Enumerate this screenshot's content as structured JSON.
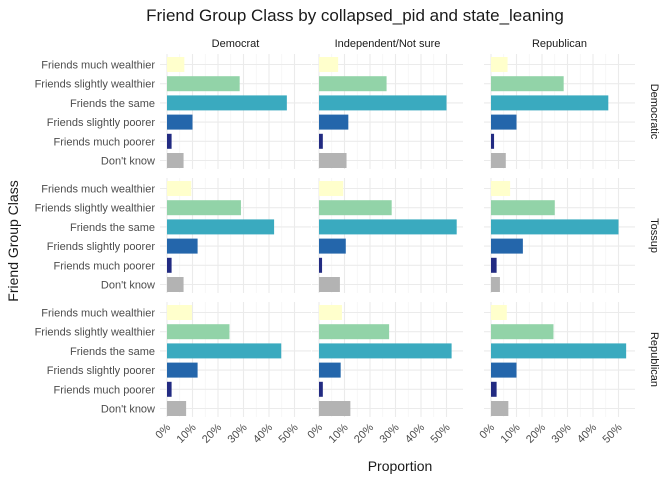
{
  "chart_data": {
    "type": "bar",
    "orientation": "horizontal",
    "title": "Friend Group Class by collapsed_pid and state_leaning",
    "xlabel": "Proportion",
    "ylabel": "Friend Group Class",
    "xlim": [
      0,
      0.53
    ],
    "x_ticks": [
      0,
      0.1,
      0.2,
      0.3,
      0.4,
      0.5
    ],
    "x_tick_labels": [
      "0%",
      "10%",
      "20%",
      "30%",
      "40%",
      "50%"
    ],
    "categories": [
      "Friends much wealthier",
      "Friends slightly wealthier",
      "Friends the same",
      "Friends slightly poorer",
      "Friends much poorer",
      "Don't know"
    ],
    "category_colors": [
      "#ffffcc",
      "#92d3a8",
      "#3aaabf",
      "#2466ab",
      "#222b82",
      "#b3b3b3"
    ],
    "column_facets": [
      "Democrat",
      "Independent/Not sure",
      "Republican"
    ],
    "row_facets": [
      "Democratic",
      "Tossup",
      "Republican"
    ],
    "grid": true,
    "legend": "none",
    "panels": [
      {
        "row": "Democratic",
        "col": "Democrat",
        "values": [
          0.068,
          0.285,
          0.47,
          0.1,
          0.018,
          0.065
        ]
      },
      {
        "row": "Democratic",
        "col": "Independent/Not sure",
        "values": [
          0.075,
          0.265,
          0.5,
          0.115,
          0.015,
          0.108
        ]
      },
      {
        "row": "Democratic",
        "col": "Republican",
        "values": [
          0.065,
          0.285,
          0.46,
          0.1,
          0.012,
          0.058
        ]
      },
      {
        "row": "Tossup",
        "col": "Democrat",
        "values": [
          0.095,
          0.29,
          0.42,
          0.12,
          0.018,
          0.065
        ]
      },
      {
        "row": "Tossup",
        "col": "Independent/Not sure",
        "values": [
          0.095,
          0.285,
          0.54,
          0.105,
          0.012,
          0.082
        ]
      },
      {
        "row": "Tossup",
        "col": "Republican",
        "values": [
          0.075,
          0.25,
          0.5,
          0.125,
          0.022,
          0.035
        ]
      },
      {
        "row": "Republican",
        "col": "Democrat",
        "values": [
          0.098,
          0.245,
          0.448,
          0.12,
          0.018,
          0.075
        ]
      },
      {
        "row": "Republican",
        "col": "Independent/Not sure",
        "values": [
          0.09,
          0.275,
          0.52,
          0.085,
          0.015,
          0.123
        ]
      },
      {
        "row": "Republican",
        "col": "Republican",
        "values": [
          0.062,
          0.245,
          0.53,
          0.1,
          0.022,
          0.068
        ]
      }
    ]
  }
}
